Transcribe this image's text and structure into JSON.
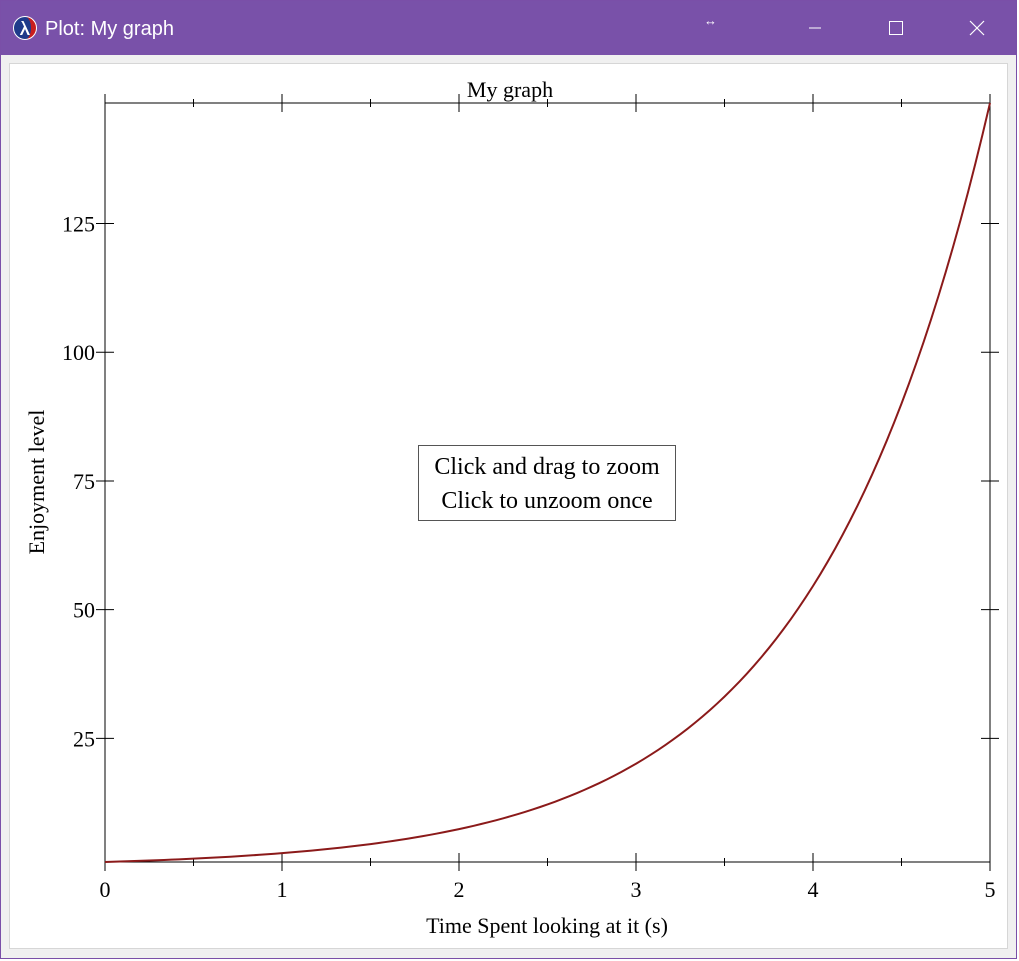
{
  "window": {
    "title": "Plot: My graph",
    "resize_glyph": "↔",
    "icons": {
      "app": "lambda-app-icon",
      "minimize": "minimize-icon",
      "maximize": "maximize-icon",
      "close": "close-icon"
    },
    "accent_color": "#7951a9"
  },
  "hint": {
    "line1": "Click and drag to zoom",
    "line2": "Click to unzoom once"
  },
  "chart_data": {
    "type": "line",
    "title": "My graph",
    "xlabel": "Time Spent looking at it (s)",
    "ylabel": "Enjoyment level",
    "xlim": [
      0,
      5
    ],
    "ylim": [
      1,
      148.4
    ],
    "x_ticks": [
      "0",
      "1",
      "2",
      "3",
      "4",
      "5"
    ],
    "y_ticks": [
      "25",
      "50",
      "75",
      "100",
      "125"
    ],
    "grid": false,
    "legend": "none",
    "series": [
      {
        "color": "#8b1a1a",
        "x": [
          0,
          0.5,
          1,
          1.5,
          2,
          2.5,
          3,
          3.5,
          4,
          4.5,
          5
        ],
        "y": [
          1,
          1.65,
          2.72,
          4.48,
          7.39,
          12.18,
          20.09,
          33.12,
          54.6,
          90.02,
          148.41
        ]
      }
    ]
  }
}
